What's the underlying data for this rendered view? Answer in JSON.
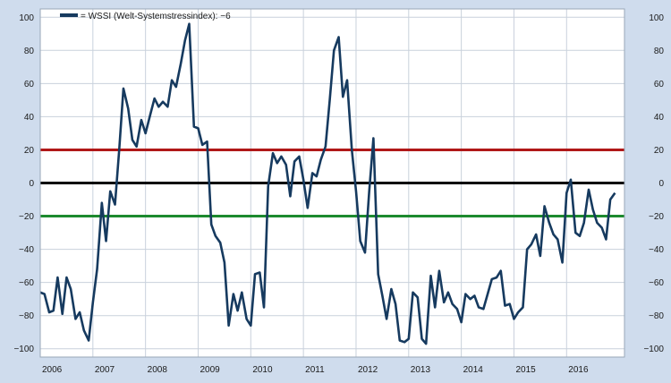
{
  "colors": {
    "background": "#cfdced",
    "plot_background": "#ffffff",
    "grid": "#c9d1dc",
    "line": "#163a5f",
    "upper_line": "#b01818",
    "zero_line": "#000000",
    "lower_line": "#1d8a2e",
    "text": "#1a1a1a"
  },
  "chart_data": {
    "type": "line",
    "title": "",
    "xlabel": "",
    "ylabel": "",
    "legend": {
      "label": "= WSSI (Welt-Systemstressindex): −6",
      "position": "top-left"
    },
    "ylim": [
      -105,
      105
    ],
    "xlim": [
      2006,
      2017.1
    ],
    "y_ticks": [
      -100,
      -80,
      -60,
      -40,
      -20,
      0,
      20,
      40,
      60,
      80,
      100
    ],
    "y_tick_labels": [
      "−100",
      "−80",
      "−60",
      "−40",
      "−20",
      "0",
      "20",
      "40",
      "60",
      "80",
      "100"
    ],
    "y_axis_right": true,
    "x_ticks": [
      2006,
      2007,
      2008,
      2009,
      2010,
      2011,
      2012,
      2013,
      2014,
      2015,
      2016
    ],
    "x_tick_labels": [
      "2006",
      "2007",
      "2008",
      "2009",
      "2010",
      "2011",
      "2012",
      "2013",
      "2014",
      "2015",
      "2016"
    ],
    "grid": true,
    "reference_lines": [
      {
        "value": 20,
        "color_key": "upper_line"
      },
      {
        "value": 0,
        "color_key": "zero_line"
      },
      {
        "value": -20,
        "color_key": "lower_line"
      }
    ],
    "series": [
      {
        "name": "WSSI (Welt-Systemstressindex)",
        "x": [
          2006.0,
          2006.08,
          2006.17,
          2006.25,
          2006.33,
          2006.42,
          2006.5,
          2006.58,
          2006.67,
          2006.75,
          2006.83,
          2006.92,
          2007.0,
          2007.08,
          2007.17,
          2007.25,
          2007.33,
          2007.42,
          2007.5,
          2007.58,
          2007.67,
          2007.75,
          2007.83,
          2007.92,
          2008.0,
          2008.08,
          2008.17,
          2008.25,
          2008.33,
          2008.42,
          2008.5,
          2008.58,
          2008.67,
          2008.75,
          2008.83,
          2008.92,
          2009.0,
          2009.08,
          2009.17,
          2009.25,
          2009.33,
          2009.42,
          2009.5,
          2009.58,
          2009.67,
          2009.75,
          2009.83,
          2009.92,
          2010.0,
          2010.08,
          2010.17,
          2010.25,
          2010.33,
          2010.42,
          2010.5,
          2010.58,
          2010.67,
          2010.75,
          2010.83,
          2010.92,
          2011.0,
          2011.08,
          2011.17,
          2011.25,
          2011.33,
          2011.42,
          2011.5,
          2011.58,
          2011.67,
          2011.75,
          2011.83,
          2011.92,
          2012.0,
          2012.08,
          2012.17,
          2012.25,
          2012.33,
          2012.42,
          2012.5,
          2012.58,
          2012.67,
          2012.75,
          2012.83,
          2012.92,
          2013.0,
          2013.08,
          2013.17,
          2013.25,
          2013.33,
          2013.42,
          2013.5,
          2013.58,
          2013.67,
          2013.75,
          2013.83,
          2013.92,
          2014.0,
          2014.08,
          2014.17,
          2014.25,
          2014.33,
          2014.42,
          2014.5,
          2014.58,
          2014.67,
          2014.75,
          2014.83,
          2014.92,
          2015.0,
          2015.08,
          2015.17,
          2015.25,
          2015.33,
          2015.42,
          2015.5,
          2015.58,
          2015.67,
          2015.75,
          2015.83,
          2015.92,
          2016.0,
          2016.08,
          2016.17,
          2016.25,
          2016.33,
          2016.42,
          2016.5,
          2016.58,
          2016.67,
          2016.75,
          2016.83,
          2016.92
        ],
        "values": [
          -66,
          -67,
          -78,
          -77,
          -57,
          -79,
          -57,
          -64,
          -82,
          -78,
          -89,
          -95,
          -72,
          -52,
          -12,
          -35,
          -5,
          -13,
          20,
          57,
          45,
          26,
          22,
          38,
          30,
          40,
          51,
          46,
          49,
          46,
          62,
          58,
          72,
          86,
          96,
          34,
          33,
          23,
          25,
          -25,
          -32,
          -36,
          -48,
          -86,
          -67,
          -77,
          -66,
          -82,
          -86,
          -55,
          -54,
          -75,
          -2,
          18,
          12,
          16,
          11,
          -8,
          13,
          16,
          2,
          -15,
          6,
          4,
          14,
          22,
          50,
          80,
          88,
          52,
          62,
          20,
          -5,
          -35,
          -42,
          -5,
          27,
          -55,
          -68,
          -82,
          -64,
          -73,
          -95,
          -96,
          -94,
          -66,
          -69,
          -94,
          -97,
          -56,
          -75,
          -53,
          -72,
          -66,
          -73,
          -76,
          -84,
          -67,
          -70,
          -68,
          -75,
          -76,
          -67,
          -58,
          -57,
          -53,
          -74,
          -73,
          -82,
          -78,
          -75,
          -40,
          -37,
          -31,
          -44,
          -14,
          -24,
          -31,
          -34,
          -48,
          -6,
          2,
          -30,
          -32,
          -24,
          -4,
          -16,
          -24,
          -27,
          -34,
          -10,
          -6
        ]
      }
    ]
  }
}
